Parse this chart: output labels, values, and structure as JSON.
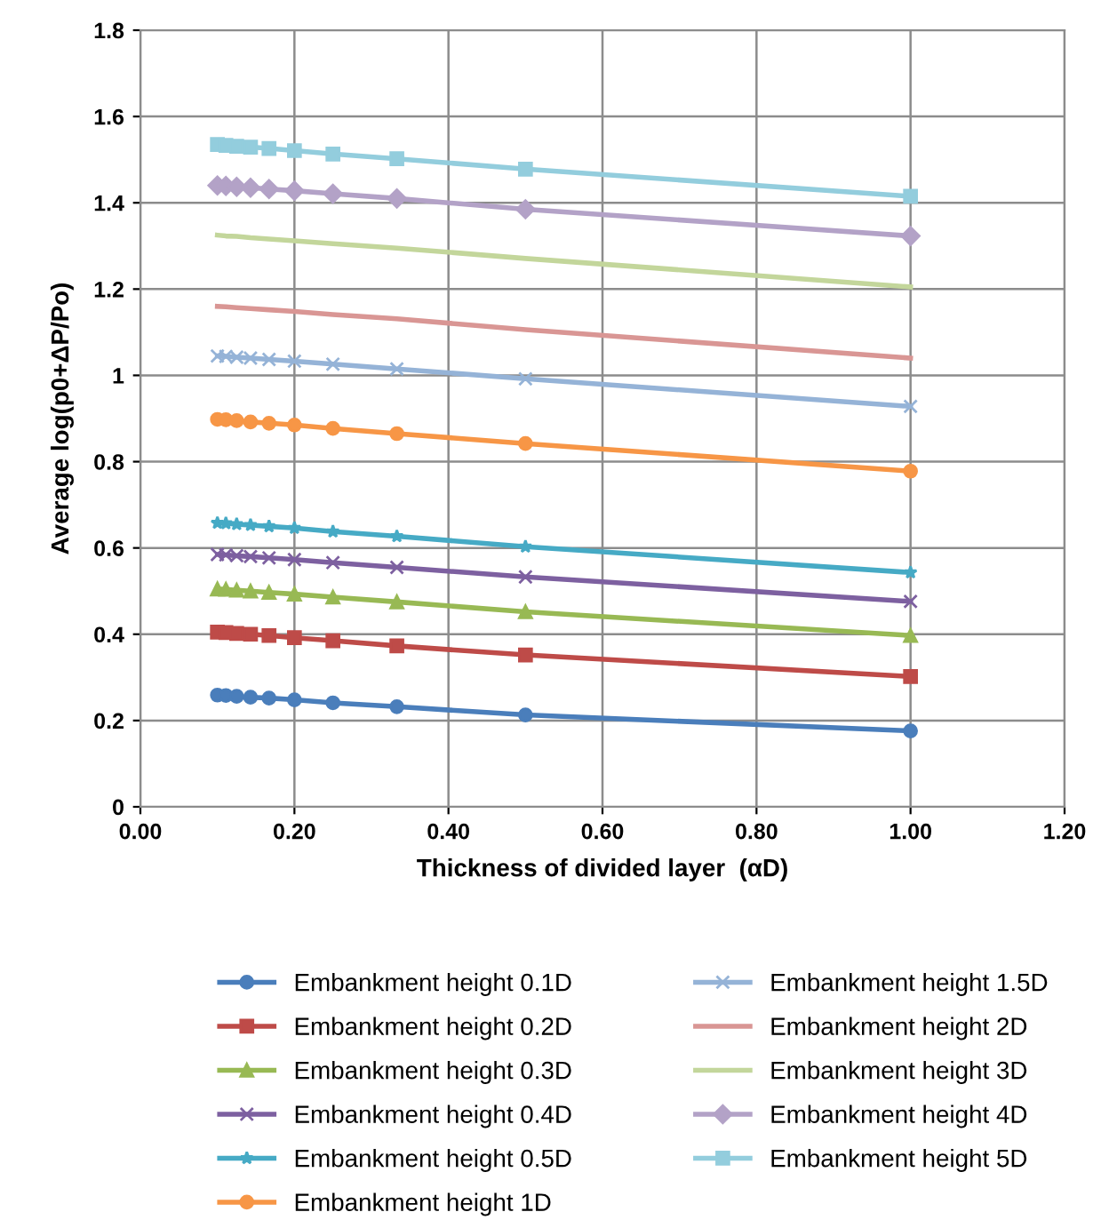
{
  "chart_data": {
    "type": "line",
    "xlabel": "Thickness of divided layer  (αD)",
    "ylabel": "Average log(p0+ΔP/Po)",
    "x": [
      0.1,
      0.111,
      0.125,
      0.143,
      0.167,
      0.2,
      0.25,
      0.333,
      0.5,
      1.0
    ],
    "xlim": [
      0,
      1.2
    ],
    "xticks": [
      {
        "value": 0,
        "label": "0.00"
      },
      {
        "value": 0.2,
        "label": "0.20"
      },
      {
        "value": 0.4,
        "label": "0.40"
      },
      {
        "value": 0.6,
        "label": "0.60"
      },
      {
        "value": 0.8,
        "label": "0.80"
      },
      {
        "value": 1.0,
        "label": "1.00"
      },
      {
        "value": 1.2,
        "label": "1.20"
      }
    ],
    "ylim": [
      0,
      1.8
    ],
    "yticks": [
      0,
      0.2,
      0.4,
      0.6,
      0.8,
      1,
      1.2,
      1.4,
      1.6,
      1.8
    ],
    "grid": true,
    "legend": "bottom",
    "series": [
      {
        "name": "Embankment height 0.1D",
        "color": "#4a7ebb",
        "marker": "circle",
        "values": [
          0.259,
          0.258,
          0.256,
          0.254,
          0.252,
          0.248,
          0.241,
          0.232,
          0.213,
          0.176
        ]
      },
      {
        "name": "Embankment height 0.2D",
        "color": "#be4b48",
        "marker": "square",
        "values": [
          0.405,
          0.404,
          0.402,
          0.4,
          0.397,
          0.392,
          0.385,
          0.373,
          0.352,
          0.302
        ]
      },
      {
        "name": "Embankment height 0.3D",
        "color": "#98b954",
        "marker": "triangle",
        "values": [
          0.505,
          0.504,
          0.502,
          0.5,
          0.497,
          0.493,
          0.486,
          0.475,
          0.452,
          0.397
        ]
      },
      {
        "name": "Embankment height 0.4D",
        "color": "#7d60a0",
        "marker": "cross",
        "values": [
          0.585,
          0.584,
          0.582,
          0.58,
          0.577,
          0.573,
          0.566,
          0.555,
          0.533,
          0.476
        ]
      },
      {
        "name": "Embankment height 0.5D",
        "color": "#46aac5",
        "marker": "star",
        "values": [
          0.658,
          0.657,
          0.655,
          0.653,
          0.65,
          0.646,
          0.638,
          0.627,
          0.603,
          0.543
        ]
      },
      {
        "name": "Embankment height 1D",
        "color": "#f79646",
        "marker": "circle",
        "values": [
          0.898,
          0.897,
          0.895,
          0.892,
          0.889,
          0.885,
          0.877,
          0.865,
          0.842,
          0.778
        ]
      },
      {
        "name": "Embankment height 1.5D",
        "color": "#95b3d7",
        "marker": "cross",
        "values": [
          1.045,
          1.044,
          1.042,
          1.04,
          1.037,
          1.033,
          1.026,
          1.015,
          0.992,
          0.928
        ]
      },
      {
        "name": "Embankment height 2D",
        "color": "#d99694",
        "marker": "none",
        "values": [
          1.16,
          1.159,
          1.157,
          1.155,
          1.152,
          1.148,
          1.141,
          1.131,
          1.106,
          1.04
        ]
      },
      {
        "name": "Embankment height 3D",
        "color": "#c3d69b",
        "marker": "none",
        "values": [
          1.325,
          1.323,
          1.322,
          1.319,
          1.316,
          1.312,
          1.305,
          1.295,
          1.271,
          1.205
        ]
      },
      {
        "name": "Embankment height 4D",
        "color": "#b3a2c7",
        "marker": "diamond",
        "values": [
          1.44,
          1.439,
          1.437,
          1.435,
          1.432,
          1.428,
          1.421,
          1.41,
          1.385,
          1.323
        ]
      },
      {
        "name": "Embankment height 5D",
        "color": "#93cddd",
        "marker": "square",
        "values": [
          1.535,
          1.533,
          1.531,
          1.529,
          1.526,
          1.521,
          1.513,
          1.502,
          1.478,
          1.415
        ]
      }
    ]
  }
}
